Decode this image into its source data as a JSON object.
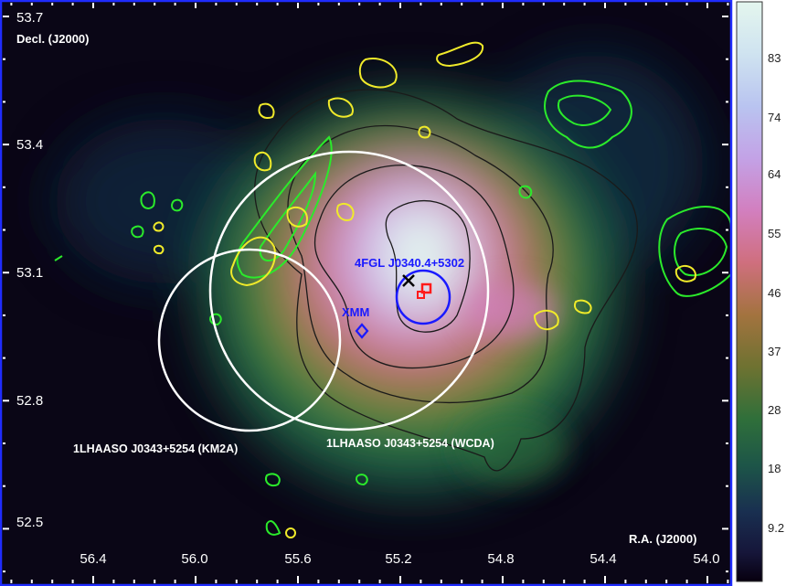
{
  "axes": {
    "y_label": "Decl. (J2000)",
    "x_label": "R.A. (J2000)",
    "y_ticks": [
      "53.7",
      "53.4",
      "53.1",
      "52.8",
      "52.5"
    ],
    "x_ticks": [
      "56.4",
      "56.0",
      "55.6",
      "55.2",
      "54.8",
      "54.4",
      "54.0"
    ]
  },
  "sources": {
    "fermi": "4FGL J0340.4+5302",
    "xmm": "XMM",
    "km2a": "1LHAASO J0343+5254 (KM2A)",
    "wcda": "1LHAASO J0343+5254 (WCDA)"
  },
  "colorbar": {
    "ticks": [
      "83",
      "74",
      "64",
      "55",
      "46",
      "37",
      "28",
      "18",
      "9.2"
    ],
    "colormap": [
      "#e4f6ee",
      "#b9cdf0",
      "#c3a2e6",
      "#d27fbf",
      "#cf6f7e",
      "#a3733f",
      "#6e7231",
      "#2f6f3a",
      "#1d5548",
      "#192f50",
      "#16163a",
      "#07000f"
    ]
  },
  "colors": {
    "frame": "#1f2cff",
    "contour_green": "#2bea2b",
    "contour_yellow": "#f0ea2a",
    "circles": "#ffffff",
    "fermi_circle": "#1a1aff",
    "marker_red": "#ff1a1a"
  }
}
